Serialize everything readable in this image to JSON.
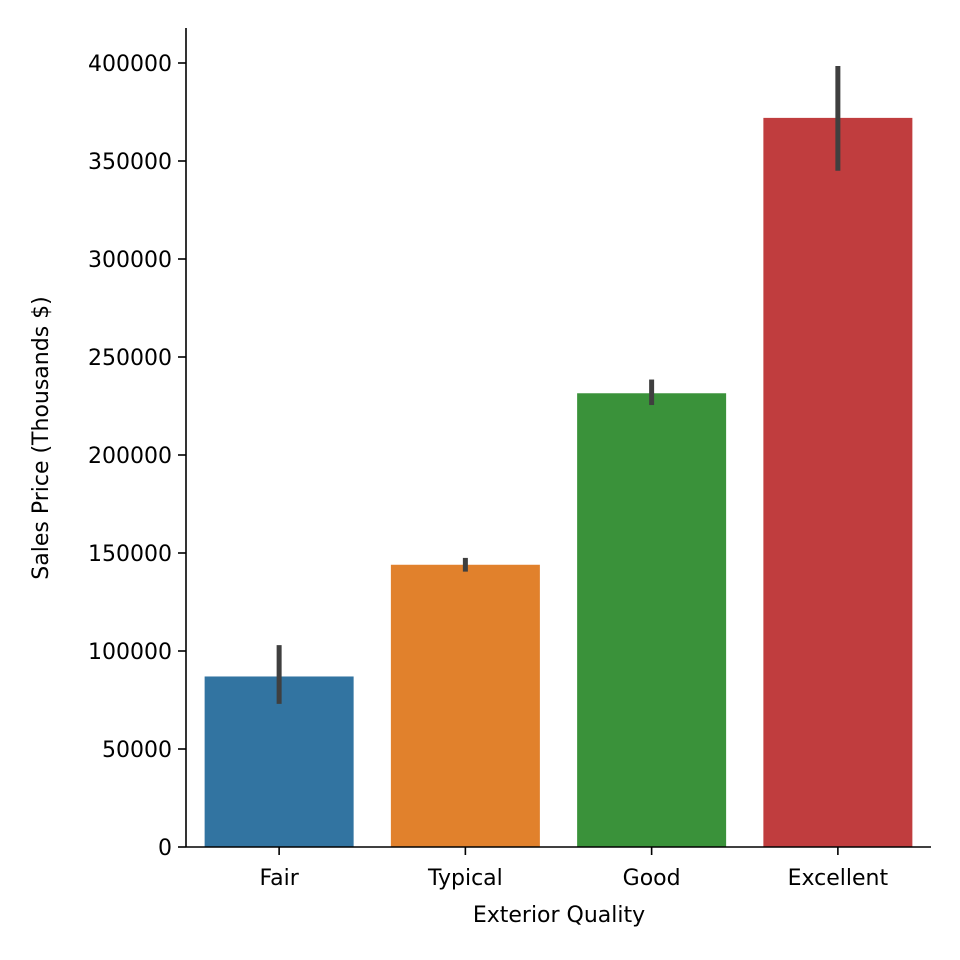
{
  "chart_data": {
    "type": "bar",
    "title": "",
    "xlabel": "Exterior Quality",
    "ylabel": "Sales Price (Thousands $)",
    "categories": [
      "Fair",
      "Typical",
      "Good",
      "Excellent"
    ],
    "values": [
      87000,
      144000,
      231500,
      372000
    ],
    "error_bars": [
      {
        "low": 73000,
        "high": 103000
      },
      {
        "low": 140500,
        "high": 147500
      },
      {
        "low": 225500,
        "high": 238500
      },
      {
        "low": 345000,
        "high": 398500
      }
    ],
    "colors": [
      "#3274a1",
      "#e1812c",
      "#3a923a",
      "#c03d3e"
    ],
    "error_bar_color": "#3f3f3f",
    "ylim": [
      0,
      417000
    ],
    "yticks": [
      0,
      50000,
      100000,
      150000,
      200000,
      250000,
      300000,
      350000,
      400000
    ],
    "ytick_labels": [
      "0",
      "50000",
      "100000",
      "150000",
      "200000",
      "250000",
      "300000",
      "350000",
      "400000"
    ],
    "grid": false,
    "legend": "none"
  }
}
